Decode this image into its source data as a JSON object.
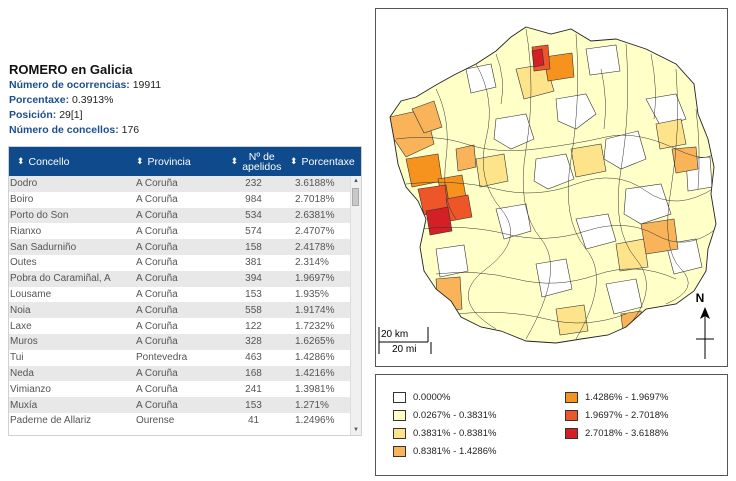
{
  "summary": {
    "title": "ROMERO en Galicia",
    "ocorrencias_label": "Número de ocorrencias:",
    "ocorrencias_value": "19911",
    "porcentaxe_label": "Porcentaxe:",
    "porcentaxe_value": "0.3913%",
    "posicion_label": "Posición:",
    "posicion_value": "29[1]",
    "concellos_label": "Número de concellos:",
    "concellos_value": "176"
  },
  "table": {
    "headers": {
      "concello": "Concello",
      "provincia": "Provincia",
      "apelidos_line1": "Nº de",
      "apelidos_line2": "apelidos",
      "porcentaxe": "Porcentaxe"
    },
    "rows": [
      {
        "concello": "Dodro",
        "provincia": "A Coruña",
        "apelidos": "232",
        "porcentaxe": "3.6188%"
      },
      {
        "concello": "Boiro",
        "provincia": "A Coruña",
        "apelidos": "984",
        "porcentaxe": "2.7018%"
      },
      {
        "concello": "Porto do Son",
        "provincia": "A Coruña",
        "apelidos": "534",
        "porcentaxe": "2.6381%"
      },
      {
        "concello": "Rianxo",
        "provincia": "A Coruña",
        "apelidos": "574",
        "porcentaxe": "2.4707%"
      },
      {
        "concello": "San Sadurniño",
        "provincia": "A Coruña",
        "apelidos": "158",
        "porcentaxe": "2.4178%"
      },
      {
        "concello": "Outes",
        "provincia": "A Coruña",
        "apelidos": "381",
        "porcentaxe": "2.314%"
      },
      {
        "concello": "Pobra do Caramiñal, A",
        "provincia": "A Coruña",
        "apelidos": "394",
        "porcentaxe": "1.9697%"
      },
      {
        "concello": "Lousame",
        "provincia": "A Coruña",
        "apelidos": "153",
        "porcentaxe": "1.935%"
      },
      {
        "concello": "Noia",
        "provincia": "A Coruña",
        "apelidos": "558",
        "porcentaxe": "1.9174%"
      },
      {
        "concello": "Laxe",
        "provincia": "A Coruña",
        "apelidos": "122",
        "porcentaxe": "1.7232%"
      },
      {
        "concello": "Muros",
        "provincia": "A Coruña",
        "apelidos": "328",
        "porcentaxe": "1.6265%"
      },
      {
        "concello": "Tui",
        "provincia": "Pontevedra",
        "apelidos": "463",
        "porcentaxe": "1.4286%"
      },
      {
        "concello": "Neda",
        "provincia": "A Coruña",
        "apelidos": "168",
        "porcentaxe": "1.4216%"
      },
      {
        "concello": "Vimianzo",
        "provincia": "A Coruña",
        "apelidos": "241",
        "porcentaxe": "1.3981%"
      },
      {
        "concello": "Muxía",
        "provincia": "A Coruña",
        "apelidos": "153",
        "porcentaxe": "1.271%"
      },
      {
        "concello": "Paderne de Allariz",
        "provincia": "Ourense",
        "apelidos": "41",
        "porcentaxe": "1.2496%"
      }
    ]
  },
  "map": {
    "north_label": "N",
    "scale_km": "20 km",
    "scale_mi": "20 mi"
  },
  "legend": [
    {
      "label": "0.0000%",
      "color": "#ffffff"
    },
    {
      "label": "0.0267% - 0.3831%",
      "color": "#ffffc8"
    },
    {
      "label": "0.3831% - 0.8381%",
      "color": "#fde38a"
    },
    {
      "label": "0.8381% - 1.4286%",
      "color": "#f9b45a"
    },
    {
      "label": "1.4286% - 1.9697%",
      "color": "#f6921e"
    },
    {
      "label": "1.9697% - 2.7018%",
      "color": "#ee5528"
    },
    {
      "label": "2.7018% - 3.6188%",
      "color": "#d51f26"
    }
  ]
}
